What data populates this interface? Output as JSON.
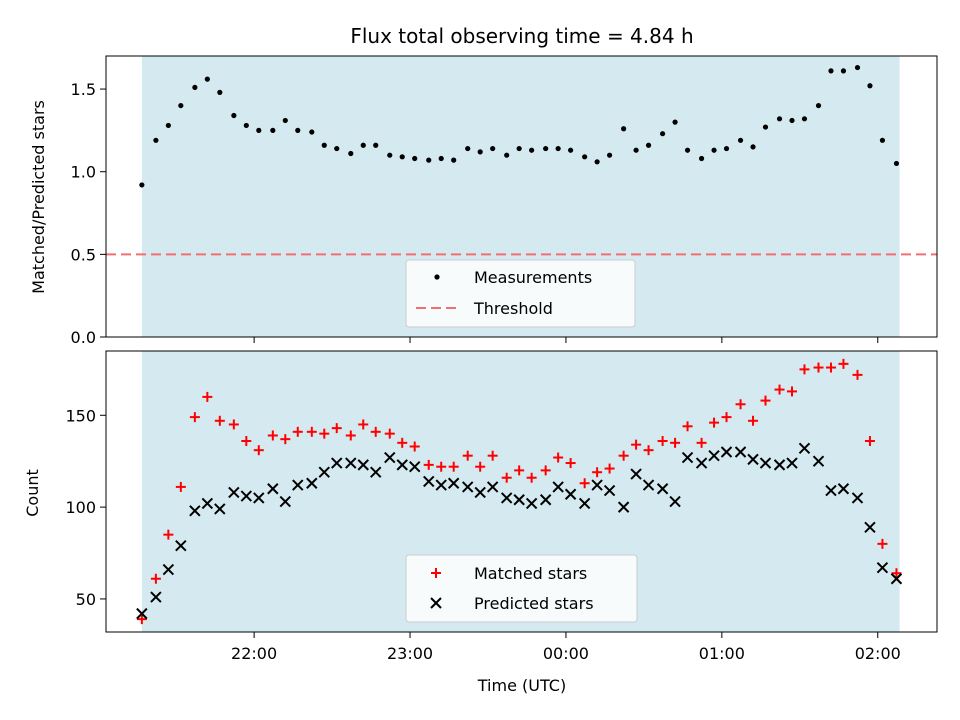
{
  "title": "Flux total observing time = 4.84 h",
  "colors": {
    "shade": "#d4eaf0",
    "measurement": "#000000",
    "threshold": "#f07070",
    "matched": "#ff0000",
    "predicted": "#000000"
  },
  "x_axis": {
    "label": "Time (UTC)",
    "ticks": [
      {
        "label": "22:00",
        "value": 22.0
      },
      {
        "label": "23:00",
        "value": 23.0
      },
      {
        "label": "00:00",
        "value": 24.0
      },
      {
        "label": "01:00",
        "value": 25.0
      },
      {
        "label": "02:00",
        "value": 26.0
      }
    ],
    "range": [
      21.05,
      26.38
    ],
    "shade_span": [
      21.28,
      26.14
    ]
  },
  "chart_data": [
    {
      "type": "scatter",
      "ylabel": "Matched/Predicted stars",
      "ylim": [
        0,
        1.7
      ],
      "yticks": [
        0.0,
        0.5,
        1.0,
        1.5
      ],
      "ytick_labels": [
        "0.0",
        "0.5",
        "1.0",
        "1.5"
      ],
      "legend": {
        "placement": "lower-center",
        "entries": [
          "Measurements",
          "Threshold"
        ]
      },
      "threshold": 0.5,
      "series": [
        {
          "name": "Measurements",
          "marker": "dot",
          "x": [
            21.28,
            21.37,
            21.45,
            21.53,
            21.62,
            21.7,
            21.78,
            21.87,
            21.95,
            22.03,
            22.12,
            22.2,
            22.28,
            22.37,
            22.45,
            22.53,
            22.62,
            22.7,
            22.78,
            22.87,
            22.95,
            23.03,
            23.12,
            23.2,
            23.28,
            23.37,
            23.45,
            23.53,
            23.62,
            23.7,
            23.78,
            23.87,
            23.95,
            24.03,
            24.12,
            24.2,
            24.28,
            24.37,
            24.45,
            24.53,
            24.62,
            24.7,
            24.78,
            24.87,
            24.95,
            25.03,
            25.12,
            25.2,
            25.28,
            25.37,
            25.45,
            25.53,
            25.62,
            25.7,
            25.78,
            25.87,
            25.95,
            26.03,
            26.12
          ],
          "y": [
            0.92,
            1.19,
            1.28,
            1.4,
            1.51,
            1.56,
            1.48,
            1.34,
            1.28,
            1.25,
            1.25,
            1.31,
            1.25,
            1.24,
            1.16,
            1.14,
            1.11,
            1.16,
            1.16,
            1.1,
            1.09,
            1.08,
            1.07,
            1.08,
            1.07,
            1.14,
            1.12,
            1.14,
            1.1,
            1.14,
            1.13,
            1.14,
            1.14,
            1.13,
            1.09,
            1.06,
            1.1,
            1.26,
            1.13,
            1.16,
            1.23,
            1.3,
            1.13,
            1.08,
            1.13,
            1.14,
            1.19,
            1.15,
            1.27,
            1.32,
            1.31,
            1.32,
            1.4,
            1.61,
            1.61,
            1.63,
            1.52,
            1.19,
            1.05
          ]
        }
      ]
    },
    {
      "type": "scatter",
      "ylabel": "Count",
      "ylim": [
        32,
        185
      ],
      "yticks": [
        50,
        100,
        150
      ],
      "ytick_labels": [
        "50",
        "100",
        "150"
      ],
      "legend": {
        "placement": "lower-center",
        "entries": [
          "Matched stars",
          "Predicted stars"
        ]
      },
      "series": [
        {
          "name": "Matched stars",
          "marker": "plus",
          "x": [
            21.28,
            21.37,
            21.45,
            21.53,
            21.62,
            21.7,
            21.78,
            21.87,
            21.95,
            22.03,
            22.12,
            22.2,
            22.28,
            22.37,
            22.45,
            22.53,
            22.62,
            22.7,
            22.78,
            22.87,
            22.95,
            23.03,
            23.12,
            23.2,
            23.28,
            23.37,
            23.45,
            23.53,
            23.62,
            23.7,
            23.78,
            23.87,
            23.95,
            24.03,
            24.12,
            24.2,
            24.28,
            24.37,
            24.45,
            24.53,
            24.62,
            24.7,
            24.78,
            24.87,
            24.95,
            25.03,
            25.12,
            25.2,
            25.28,
            25.37,
            25.45,
            25.53,
            25.62,
            25.7,
            25.78,
            25.87,
            25.95,
            26.03,
            26.12
          ],
          "y": [
            39,
            61,
            85,
            111,
            149,
            160,
            147,
            145,
            136,
            131,
            139,
            137,
            141,
            141,
            140,
            143,
            139,
            145,
            141,
            140,
            135,
            133,
            123,
            122,
            122,
            128,
            122,
            128,
            116,
            120,
            116,
            120,
            127,
            124,
            113,
            119,
            121,
            128,
            134,
            131,
            136,
            135,
            144,
            135,
            146,
            149,
            156,
            147,
            158,
            164,
            163,
            175,
            176,
            176,
            178,
            172,
            136,
            80,
            64
          ]
        },
        {
          "name": "Predicted stars",
          "marker": "x",
          "x": [
            21.28,
            21.37,
            21.45,
            21.53,
            21.62,
            21.7,
            21.78,
            21.87,
            21.95,
            22.03,
            22.12,
            22.2,
            22.28,
            22.37,
            22.45,
            22.53,
            22.62,
            22.7,
            22.78,
            22.87,
            22.95,
            23.03,
            23.12,
            23.2,
            23.28,
            23.37,
            23.45,
            23.53,
            23.62,
            23.7,
            23.78,
            23.87,
            23.95,
            24.03,
            24.12,
            24.2,
            24.28,
            24.37,
            24.45,
            24.53,
            24.62,
            24.7,
            24.78,
            24.87,
            24.95,
            25.03,
            25.12,
            25.2,
            25.28,
            25.37,
            25.45,
            25.53,
            25.62,
            25.7,
            25.78,
            25.87,
            25.95,
            26.03,
            26.12
          ],
          "y": [
            42,
            51,
            66,
            79,
            98,
            102,
            99,
            108,
            106,
            105,
            110,
            103,
            112,
            113,
            119,
            124,
            124,
            123,
            119,
            127,
            123,
            122,
            114,
            112,
            113,
            111,
            108,
            111,
            105,
            104,
            102,
            104,
            111,
            107,
            102,
            112,
            109,
            100,
            118,
            112,
            110,
            103,
            127,
            124,
            128,
            130,
            130,
            126,
            124,
            123,
            124,
            132,
            125,
            109,
            110,
            105,
            89,
            67,
            61
          ]
        }
      ]
    }
  ]
}
